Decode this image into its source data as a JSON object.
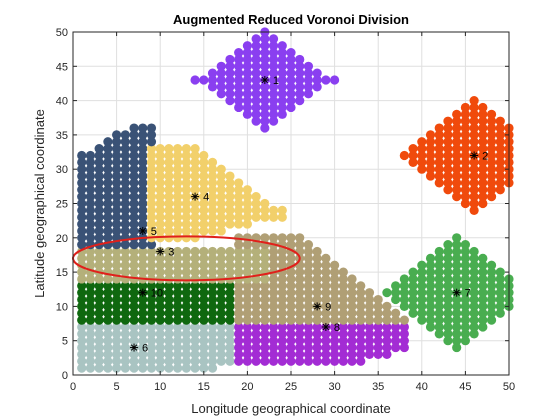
{
  "chart_data": {
    "type": "scatter",
    "title": "Augmented Reduced Voronoi Division",
    "xlabel": "Longitude geographical coordinate",
    "ylabel": "Latitude geographical coordinate",
    "xlim": [
      0,
      50
    ],
    "ylim": [
      0,
      50
    ],
    "xticks": [
      0,
      5,
      10,
      15,
      20,
      25,
      30,
      35,
      40,
      45,
      50
    ],
    "yticks": [
      0,
      5,
      10,
      15,
      20,
      25,
      30,
      35,
      40,
      45,
      50
    ],
    "xtick_labels": [
      "0",
      "5",
      "10",
      "15",
      "20",
      "25",
      "30",
      "35",
      "40",
      "45",
      "50"
    ],
    "ytick_labels": [
      "0",
      "5",
      "10",
      "15",
      "20",
      "25",
      "30",
      "35",
      "40",
      "45",
      "50"
    ],
    "grid": true,
    "sites": [
      {
        "label": "1",
        "x": 22,
        "y": 43,
        "color": "#8a3ff0"
      },
      {
        "label": "2",
        "x": 46,
        "y": 32,
        "color": "#f04a0c"
      },
      {
        "label": "3",
        "x": 10,
        "y": 18,
        "color": "#b4b07a"
      },
      {
        "label": "4",
        "x": 14,
        "y": 26,
        "color": "#f2d06b"
      },
      {
        "label": "5",
        "x": 8,
        "y": 21,
        "color": "#3a5276"
      },
      {
        "label": "6",
        "x": 7,
        "y": 4,
        "color": "#a9c4c2"
      },
      {
        "label": "7",
        "x": 44,
        "y": 12,
        "color": "#49ad50"
      },
      {
        "label": "8",
        "x": 29,
        "y": 7,
        "color": "#a32cd4"
      },
      {
        "label": "9",
        "x": 28,
        "y": 10,
        "color": "#b09f75"
      },
      {
        "label": "10",
        "x": 8,
        "y": 12,
        "color": "#0f680f"
      }
    ],
    "regions": [
      {
        "site": "1",
        "points": "diamond centered (22,43), half-width 8, half-height 7"
      },
      {
        "site": "2",
        "points": "diamond centered (46,32), half-width 8, half-height 8"
      },
      {
        "site": "7",
        "points": "diamond centered (44,12), half-width 8, half-height 8"
      },
      {
        "site": "4",
        "points": "region x 8-23, y 20-33"
      },
      {
        "site": "5",
        "points": "region x 1-9, y 19-36"
      },
      {
        "site": "3",
        "points": "region x 1-27, y 14-19"
      },
      {
        "site": "10",
        "points": "region x 1-19, y 8-14"
      },
      {
        "site": "9",
        "points": "region x 19-38, y 8-20"
      },
      {
        "site": "8",
        "points": "region x 19-38, y 2-8"
      },
      {
        "site": "6",
        "points": "region x 1-20, y 1-8"
      }
    ],
    "annotation": {
      "shape": "ellipse",
      "color": "#e0201b",
      "cx": 13,
      "cy": 17,
      "rx": 13,
      "ry": 3.2
    }
  }
}
